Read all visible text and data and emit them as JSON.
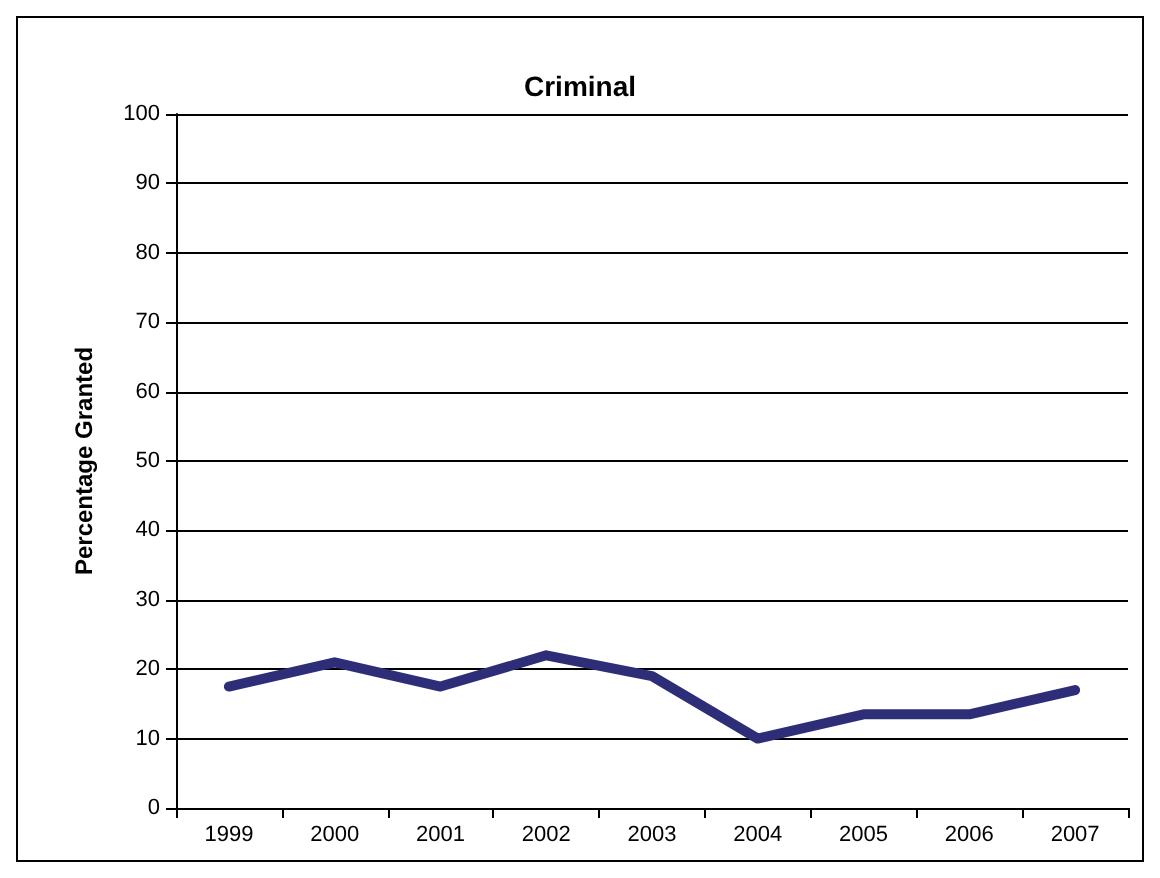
{
  "chart_data": {
    "type": "line",
    "title": "Criminal",
    "ylabel": "Percentage Granted",
    "categories": [
      "1999",
      "2000",
      "2001",
      "2002",
      "2003",
      "2004",
      "2005",
      "2006",
      "2007"
    ],
    "series": [
      {
        "color": "#2e2e78",
        "values": [
          17.5,
          21,
          17.5,
          22,
          19,
          10,
          13.5,
          13.5,
          17
        ]
      }
    ],
    "ylim": [
      0,
      100
    ],
    "yticks": [
      0,
      10,
      20,
      30,
      40,
      50,
      60,
      70,
      80,
      90,
      100
    ],
    "grid": "y",
    "marker": "none",
    "line_style": "solid"
  }
}
